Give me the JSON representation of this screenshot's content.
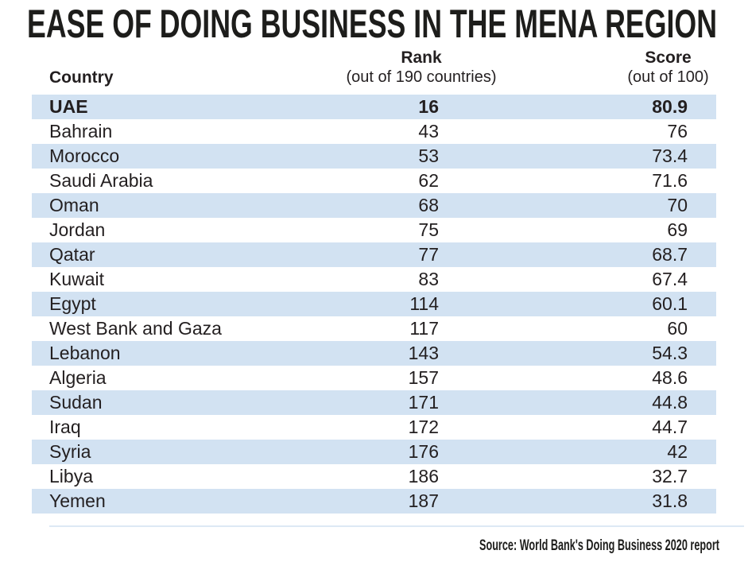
{
  "title": "EASE OF DOING BUSINESS IN THE MENA REGION",
  "header": {
    "country": "Country",
    "rank": "Rank",
    "rank_sub": "(out of 190 countries)",
    "score": "Score",
    "score_sub": "(out of 100)"
  },
  "rows": [
    {
      "country": "UAE",
      "rank": "16",
      "score": "80.9",
      "highlight": true
    },
    {
      "country": "Bahrain",
      "rank": "43",
      "score": "76"
    },
    {
      "country": "Morocco",
      "rank": "53",
      "score": "73.4"
    },
    {
      "country": "Saudi Arabia",
      "rank": "62",
      "score": "71.6"
    },
    {
      "country": "Oman",
      "rank": "68",
      "score": "70"
    },
    {
      "country": "Jordan",
      "rank": "75",
      "score": "69"
    },
    {
      "country": "Qatar",
      "rank": "77",
      "score": "68.7"
    },
    {
      "country": "Kuwait",
      "rank": "83",
      "score": "67.4"
    },
    {
      "country": "Egypt",
      "rank": "114",
      "score": "60.1"
    },
    {
      "country": "West Bank and Gaza",
      "rank": "117",
      "score": "60"
    },
    {
      "country": "Lebanon",
      "rank": "143",
      "score": "54.3"
    },
    {
      "country": "Algeria",
      "rank": "157",
      "score": "48.6"
    },
    {
      "country": "Sudan",
      "rank": "171",
      "score": "44.8"
    },
    {
      "country": "Iraq",
      "rank": "172",
      "score": "44.7"
    },
    {
      "country": "Syria",
      "rank": "176",
      "score": "42"
    },
    {
      "country": "Libya",
      "rank": "186",
      "score": "32.7"
    },
    {
      "country": "Yemen",
      "rank": "187",
      "score": "31.8"
    }
  ],
  "source": "Source: World Bank's Doing Business 2020 report",
  "colors": {
    "stripe": "#d2e2f2",
    "text": "#231f20",
    "title": "#1d1d1b",
    "divider": "#dde9f4"
  },
  "chart_data": {
    "type": "table",
    "title": "EASE OF DOING BUSINESS IN THE MENA REGION",
    "columns": [
      "Country",
      "Rank (out of 190 countries)",
      "Score (out of 100)"
    ],
    "rows": [
      [
        "UAE",
        16,
        80.9
      ],
      [
        "Bahrain",
        43,
        76
      ],
      [
        "Morocco",
        53,
        73.4
      ],
      [
        "Saudi Arabia",
        62,
        71.6
      ],
      [
        "Oman",
        68,
        70
      ],
      [
        "Jordan",
        75,
        69
      ],
      [
        "Qatar",
        77,
        68.7
      ],
      [
        "Kuwait",
        83,
        67.4
      ],
      [
        "Egypt",
        114,
        60.1
      ],
      [
        "West Bank and Gaza",
        117,
        60
      ],
      [
        "Lebanon",
        143,
        54.3
      ],
      [
        "Algeria",
        157,
        48.6
      ],
      [
        "Sudan",
        171,
        44.8
      ],
      [
        "Iraq",
        172,
        44.7
      ],
      [
        "Syria",
        176,
        42
      ],
      [
        "Libya",
        186,
        32.7
      ],
      [
        "Yemen",
        187,
        31.8
      ]
    ],
    "highlighted_row": "UAE",
    "stripe_rows": "odd rows starting with UAE",
    "source": "Source: World Bank's Doing Business 2020 report"
  }
}
